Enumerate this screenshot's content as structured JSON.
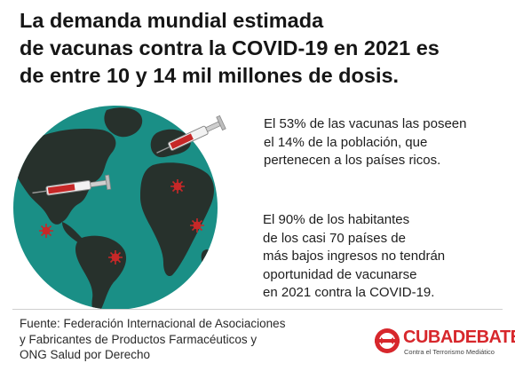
{
  "title": {
    "line1": "La demanda mundial estimada",
    "line2": "de vacunas contra la COVID-19 en 2021 es",
    "line3": "de entre 10 y 14 mil millones de dosis."
  },
  "stat_1": {
    "line1": "El 53% de las vacunas las poseen",
    "line2": "el 14% de la población, que",
    "line3": "pertenecen a los países ricos."
  },
  "stat_2": {
    "line1": "El 90% de los habitantes",
    "line2": "de los casi 70 países de",
    "line3": "más bajos ingresos no tendrán",
    "line4": "oportunidad de vacunarse",
    "line5": "en 2021 contra la COVID-19."
  },
  "source": {
    "line1": "Fuente: Federación Internacional de Asociaciones",
    "line2": "y Fabricantes de Productos Farmacéuticos y",
    "line3": "ONG Salud por Derecho"
  },
  "logo": {
    "name_part1": "CUBA",
    "name_part2": "DEBATE",
    "tagline": "Contra el Terrorismo Mediático"
  },
  "colors": {
    "ocean": "#1a8f86",
    "land": "#27312c",
    "virus": "#c62828",
    "brand_red": "#d7272c"
  },
  "icons": [
    "globe-icon",
    "syringe-icon",
    "virus-icon",
    "cubadebate-logo-icon"
  ]
}
